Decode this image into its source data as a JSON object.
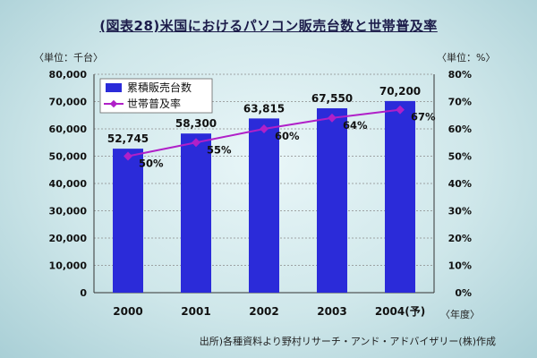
{
  "title": "(図表28)米国におけるパソコン販売台数と世帯普及率",
  "left_axis_unit": "〈単位：千台〉",
  "right_axis_unit": "〈単位：%〉",
  "x_axis_unit": "〈年度〉",
  "source": "出所)各種資料より野村リサーチ・アンド・アドバイザリー(株)作成",
  "colors": {
    "bar": "#2b2bd9",
    "line": "#b020c8",
    "grid": "#8a8a8a"
  },
  "chart_data": {
    "type": "bar",
    "categories": [
      "2000",
      "2001",
      "2002",
      "2003",
      "2004(予)"
    ],
    "series": [
      {
        "name": "累積販売台数",
        "type": "bar",
        "axis": "left",
        "values": [
          52745,
          58300,
          63815,
          67550,
          70200
        ],
        "labels": [
          "52,745",
          "58,300",
          "63,815",
          "67,550",
          "70,200"
        ]
      },
      {
        "name": "世帯普及率",
        "type": "line",
        "axis": "right",
        "values": [
          50,
          55,
          60,
          64,
          67
        ],
        "labels": [
          "50%",
          "55%",
          "60%",
          "64%",
          "67%"
        ]
      }
    ],
    "ylim_left": [
      0,
      80000
    ],
    "ylim_right": [
      0,
      80
    ],
    "left_ticks": [
      "0",
      "10,000",
      "20,000",
      "30,000",
      "40,000",
      "50,000",
      "60,000",
      "70,000",
      "80,000"
    ],
    "right_ticks": [
      "0%",
      "10%",
      "20%",
      "30%",
      "40%",
      "50%",
      "60%",
      "70%",
      "80%"
    ],
    "grid": true,
    "legend": "top-left"
  }
}
